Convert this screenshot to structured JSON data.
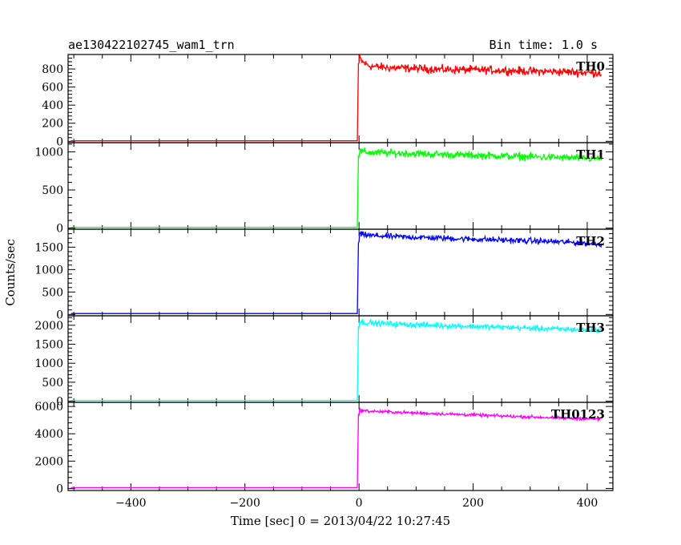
{
  "chart_data": {
    "type": "line",
    "title": "ae130422102745_wam1_trn",
    "subtitle": "Bin time: 1.0 s",
    "xlabel": "Time [sec] 0 = 2013/04/22 10:27:45",
    "ylabel": "Counts/sec",
    "xlim": [
      -510,
      445
    ],
    "x_ticks": [
      -400,
      -200,
      0,
      200,
      400
    ],
    "grid": false,
    "panels": [
      {
        "name": "TH0",
        "color": "#ff0000",
        "ylim": [
          -15,
          960
        ],
        "y_ticks": [
          0,
          200,
          400,
          600,
          800
        ],
        "pre_level": 5,
        "x": [
          -505,
          -4,
          -1,
          0,
          1,
          5,
          20,
          50,
          100,
          150,
          200,
          250,
          300,
          350,
          400,
          425
        ],
        "y": [
          5,
          5,
          400,
          860,
          930,
          880,
          830,
          815,
          805,
          795,
          790,
          785,
          775,
          770,
          760,
          755
        ],
        "noise": 28
      },
      {
        "name": "TH1",
        "color": "#00ff00",
        "ylim": [
          -15,
          1120
        ],
        "y_ticks": [
          0,
          500,
          1000
        ],
        "pre_level": 10,
        "x": [
          -505,
          -4,
          -1,
          0,
          1,
          5,
          20,
          50,
          100,
          150,
          200,
          250,
          300,
          350,
          400,
          425
        ],
        "y": [
          10,
          10,
          500,
          940,
          1010,
          1000,
          990,
          985,
          975,
          965,
          955,
          945,
          935,
          925,
          915,
          910
        ],
        "noise": 30
      },
      {
        "name": "TH2",
        "color": "#0000ff",
        "ylim": [
          -30,
          1900
        ],
        "y_ticks": [
          0,
          500,
          1000,
          1500
        ],
        "pre_level": 20,
        "x": [
          -505,
          -4,
          -1,
          0,
          1,
          5,
          20,
          50,
          100,
          150,
          200,
          250,
          300,
          350,
          400,
          425
        ],
        "y": [
          20,
          20,
          800,
          1600,
          1800,
          1780,
          1760,
          1740,
          1720,
          1700,
          1680,
          1660,
          1640,
          1620,
          1590,
          1570
        ],
        "noise": 40
      },
      {
        "name": "TH3",
        "color": "#00ffff",
        "ylim": [
          -30,
          2250
        ],
        "y_ticks": [
          0,
          500,
          1000,
          1500,
          2000
        ],
        "pre_level": 20,
        "x": [
          -505,
          -4,
          -1,
          0,
          1,
          5,
          20,
          50,
          100,
          150,
          200,
          250,
          300,
          350,
          400,
          425
        ],
        "y": [
          20,
          20,
          1000,
          1950,
          2100,
          2080,
          2060,
          2040,
          2010,
          1990,
          1970,
          1950,
          1920,
          1900,
          1880,
          1870
        ],
        "noise": 45
      },
      {
        "name": "TH0123",
        "color": "#ff00ff",
        "ylim": [
          -150,
          6300
        ],
        "y_ticks": [
          0,
          2000,
          4000,
          6000
        ],
        "pre_level": 60,
        "x": [
          -505,
          -4,
          -1,
          0,
          1,
          5,
          20,
          50,
          100,
          150,
          200,
          250,
          300,
          350,
          400,
          425
        ],
        "y": [
          60,
          60,
          3000,
          5400,
          5750,
          5700,
          5650,
          5600,
          5520,
          5450,
          5380,
          5300,
          5230,
          5160,
          5100,
          5080
        ],
        "noise": 70
      }
    ]
  }
}
